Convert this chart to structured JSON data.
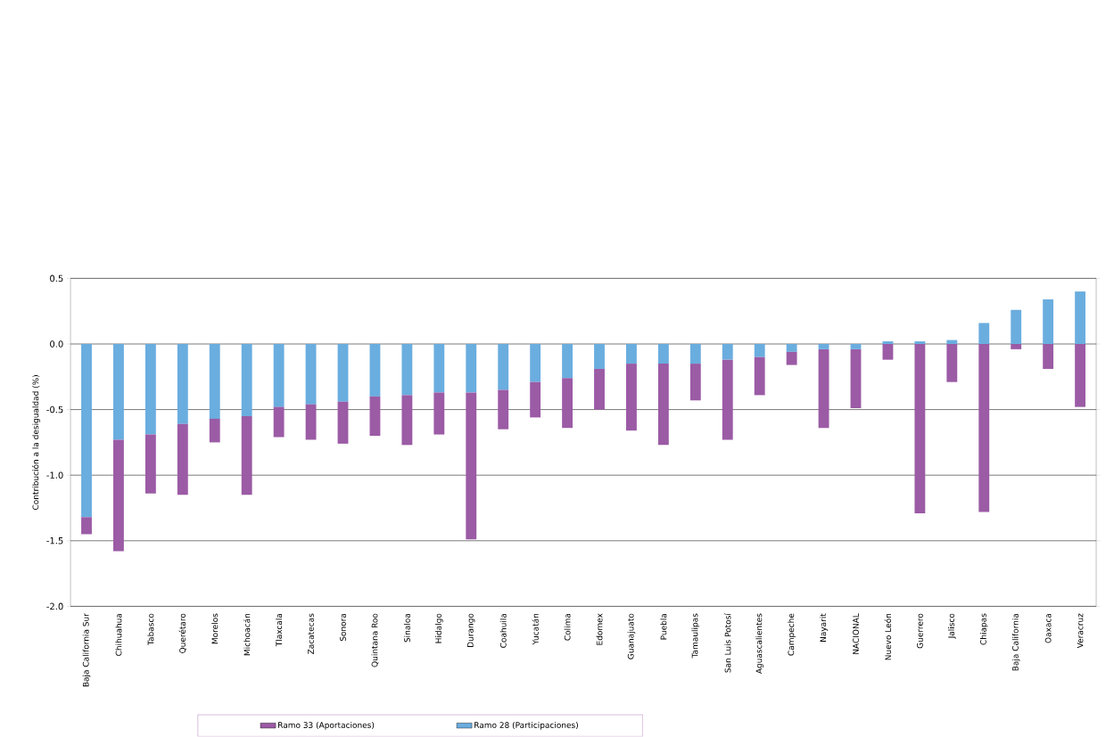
{
  "chart_data": {
    "type": "bar",
    "stacked": true,
    "ylabel": "Contribución a la desigualdad (%)",
    "categories": [
      "Baja California Sur",
      "Chihuahua",
      "Tabasco",
      "Querétaro",
      "Morelos",
      "Michoacán",
      "Tlaxcala",
      "Zacatecas",
      "Sonora",
      "Quintana Roo",
      "Sinaloa",
      "Hidalgo",
      "Durango",
      "Coahuila",
      "Yucatán",
      "Colima",
      "Edomex",
      "Guanajuato",
      "Puebla",
      "Tamaulipas",
      "San Luis Potosí",
      "Aguascalientes",
      "Campeche",
      "Nayarit",
      "NACIONAL",
      "Nuevo León",
      "Guerrero",
      "Jalisco",
      "Chiapas",
      "Baja California",
      "Oaxaca",
      "Veracruz"
    ],
    "series": [
      {
        "name": "Ramo 28 (Participaciones)",
        "color": "#6aaddf",
        "values": [
          -1.32,
          -0.73,
          -0.69,
          -0.61,
          -0.57,
          -0.55,
          -0.48,
          -0.46,
          -0.44,
          -0.4,
          -0.39,
          -0.37,
          -0.37,
          -0.35,
          -0.29,
          -0.26,
          -0.19,
          -0.15,
          -0.15,
          -0.15,
          -0.12,
          -0.1,
          -0.06,
          -0.04,
          -0.04,
          0.02,
          0.02,
          0.03,
          0.16,
          0.26,
          0.34,
          0.4
        ]
      },
      {
        "name": "Ramo 33 (Aportaciones)",
        "color": "#9b5ba5",
        "values": [
          -0.13,
          -0.85,
          -0.45,
          -0.54,
          -0.18,
          -0.6,
          -0.23,
          -0.27,
          -0.32,
          -0.3,
          -0.38,
          -0.32,
          -1.12,
          -0.3,
          -0.27,
          -0.38,
          -0.31,
          -0.51,
          -0.62,
          -0.28,
          -0.61,
          -0.29,
          -0.1,
          -0.6,
          -0.45,
          -0.12,
          -1.29,
          -0.29,
          -1.28,
          -0.04,
          -0.19,
          -0.48
        ]
      }
    ],
    "ylim": [
      -2.0,
      0.5
    ],
    "yticks": [
      0.5,
      {
        "value": 0,
        "label": "0.0"
      },
      -0.5,
      {
        "value": -1,
        "label": "-1.0"
      },
      -1.5,
      {
        "value": -2,
        "label": "-2.0"
      }
    ],
    "grid": "y",
    "legend": "bottom"
  }
}
